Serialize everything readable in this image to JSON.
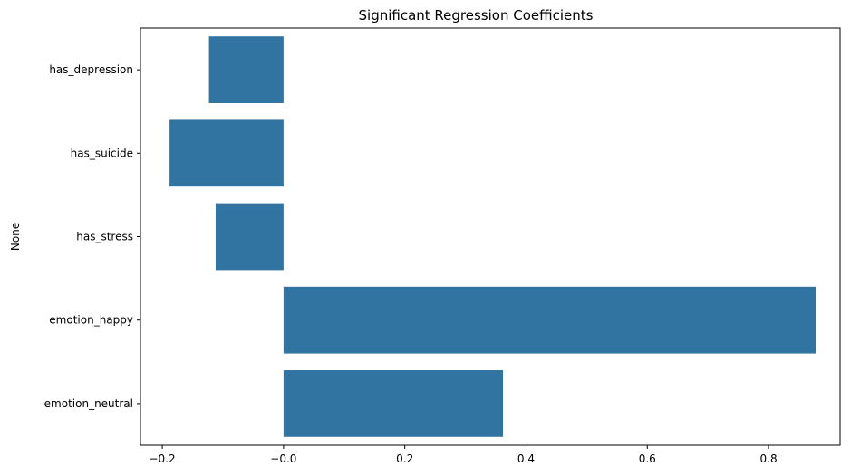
{
  "chart_data": {
    "type": "bar",
    "orientation": "horizontal",
    "title": "Significant Regression Coefficients",
    "xlabel": "",
    "ylabel": "None",
    "categories": [
      "has_depression",
      "has_suicide",
      "has_stress",
      "emotion_happy",
      "emotion_neutral"
    ],
    "values": [
      -0.123,
      -0.188,
      -0.112,
      0.878,
      0.362
    ],
    "xlim": [
      -0.236,
      0.918
    ],
    "xticks": [
      -0.2,
      0.0,
      0.2,
      0.4,
      0.6,
      0.8
    ],
    "xtick_labels": [
      "−0.2",
      "−0.0",
      "0.2",
      "0.4",
      "0.6",
      "0.8"
    ],
    "bar_color": "#3274a1",
    "grid": false,
    "legend": "none"
  }
}
